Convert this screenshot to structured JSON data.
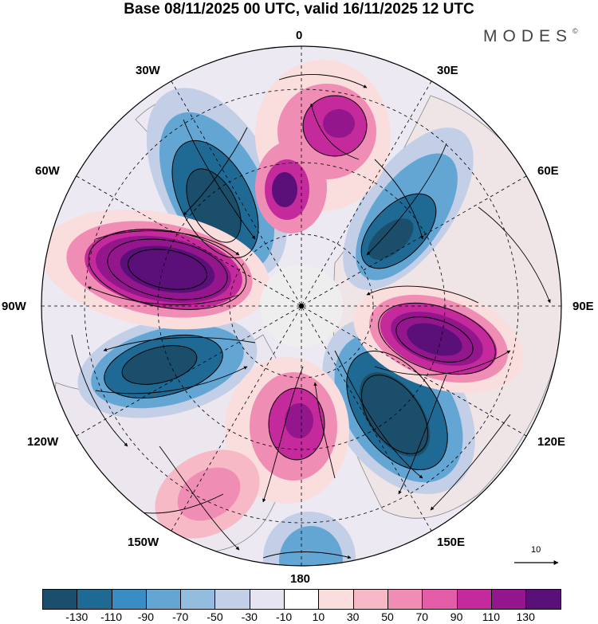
{
  "title": "Base 08/11/2025 00 UTC, valid 16/11/2025 12 UTC",
  "logo": "MODES",
  "logo_mark": "©",
  "longitude_labels": {
    "lon_0": "0",
    "lon_30e": "30E",
    "lon_60e": "60E",
    "lon_90e": "90E",
    "lon_120e": "120E",
    "lon_150e": "150E",
    "lon_180": "180",
    "lon_150w": "150W",
    "lon_120w": "120W",
    "lon_90w": "90W",
    "lon_60w": "60W",
    "lon_30w": "30W"
  },
  "reference_vector_label": "10",
  "colorbar": {
    "colors": [
      "#1b4e6b",
      "#1f6a94",
      "#3a8dc2",
      "#64a6d3",
      "#93bcdf",
      "#c2cfe6",
      "#e6e4f1",
      "#ffffff",
      "#fadede",
      "#f7b9c6",
      "#f08db4",
      "#e35ca8",
      "#c42a9c",
      "#93168d",
      "#5b0f79"
    ],
    "tick_labels": [
      "-130",
      "-110",
      "-90",
      "-70",
      "-50",
      "-30",
      "-10",
      "10",
      "30",
      "50",
      "70",
      "90",
      "110",
      "130"
    ]
  },
  "colors": {
    "land": "#f3f3f3",
    "coast": "#888888",
    "grid": "#000000"
  }
}
